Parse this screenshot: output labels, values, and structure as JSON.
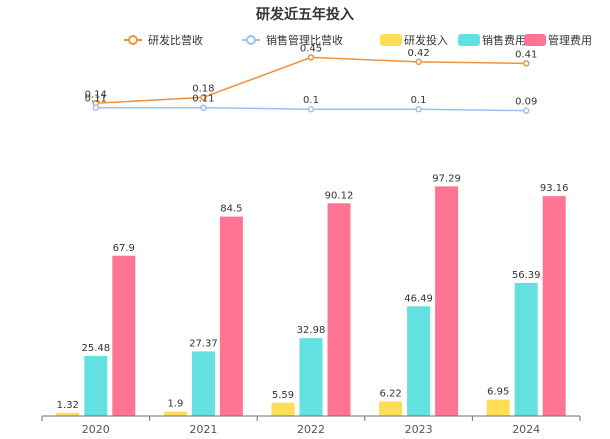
{
  "chart_data": {
    "type": "bar",
    "title": "研发近五年投入",
    "legend_position": "top",
    "categories": [
      "2020",
      "2021",
      "2022",
      "2023",
      "2024"
    ],
    "line_series": [
      {
        "name": "研发比营收",
        "values": [
          0.14,
          0.18,
          0.45,
          0.42,
          0.41
        ],
        "color": "#F0923B"
      },
      {
        "name": "销售管理比营收",
        "values": [
          0.11,
          0.11,
          0.1,
          0.1,
          0.09
        ],
        "color": "#9FBFF2"
      }
    ],
    "line_labels": [
      [
        "0.14",
        "0.18",
        "0.45",
        "0.42",
        "0.41"
      ],
      [
        "0.11",
        "0.11",
        "0.1",
        "0.1",
        "0.09"
      ]
    ],
    "bar_series": [
      {
        "name": "研发投入",
        "values": [
          1.32,
          1.9,
          5.59,
          6.22,
          6.95
        ],
        "color": "#FFDD55"
      },
      {
        "name": "销售费用",
        "values": [
          25.48,
          27.37,
          32.98,
          46.49,
          56.39
        ],
        "color": "#63E0E0"
      },
      {
        "name": "管理费用",
        "values": [
          67.9,
          84.5,
          90.12,
          97.29,
          93.16
        ],
        "color": "#FF7393"
      }
    ],
    "bar_labels": [
      [
        "1.32",
        "1.9",
        "5.59",
        "6.22",
        "6.95"
      ],
      [
        "25.48",
        "27.37",
        "32.98",
        "46.49",
        "56.39"
      ],
      [
        "67.9",
        "84.5",
        "90.12",
        "97.29",
        "93.16"
      ]
    ],
    "bar_ylim": [
      0,
      100
    ],
    "line_ylim": [
      0,
      0.5
    ],
    "grid": false
  }
}
